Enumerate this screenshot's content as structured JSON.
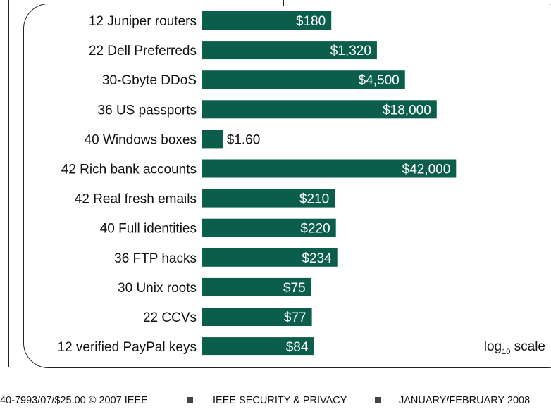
{
  "chart_data": {
    "type": "bar",
    "orientation": "horizontal",
    "scale": "log10",
    "categories": [
      "12 Juniper routers",
      "22 Dell Preferreds",
      "30-Gbyte DDoS",
      "36 US passports",
      "40 Windows boxes",
      "42 Rich bank accounts",
      "42 Real fresh emails",
      "40 Full identities",
      "36 FTP hacks",
      "30 Unix roots",
      "22 CCVs",
      "12 verified PayPal keys"
    ],
    "values": [
      180,
      1320,
      4500,
      18000,
      1.6,
      42000,
      210,
      220,
      234,
      75,
      77,
      84
    ],
    "value_labels": [
      "$180",
      "$1,320",
      "$4,500",
      "$18,000",
      "$1.60",
      "$42,000",
      "$210",
      "$220",
      "$234",
      "$75",
      "$77",
      "$84"
    ],
    "bar_color": "#0b5e4b",
    "scale_note": {
      "prefix": "log",
      "sub": "10",
      "suffix": " scale"
    }
  },
  "footer": {
    "code": "40-7993/07/$25.00 © 2007 IEEE",
    "publication": "IEEE SECURITY & PRIVACY",
    "date": "JANUARY/FEBRUARY 2008"
  }
}
